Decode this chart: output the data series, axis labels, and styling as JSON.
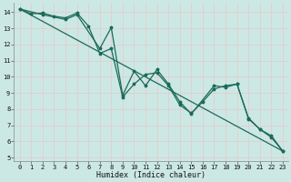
{
  "xlabel": "Humidex (Indice chaleur)",
  "bg_color": "#cce8e4",
  "grid_color_major": "#e8c8c8",
  "grid_color_minor": "#dcdcdc",
  "line_color": "#1a6b5a",
  "xlim": [
    -0.5,
    23.5
  ],
  "ylim": [
    4.8,
    14.6
  ],
  "yticks": [
    5,
    6,
    7,
    8,
    9,
    10,
    11,
    12,
    13,
    14
  ],
  "xticks": [
    0,
    1,
    2,
    3,
    4,
    5,
    6,
    7,
    8,
    9,
    10,
    11,
    12,
    13,
    14,
    15,
    16,
    17,
    18,
    19,
    20,
    21,
    22,
    23
  ],
  "line1_x": [
    0,
    1,
    2,
    3,
    4,
    5,
    6,
    7,
    8,
    9,
    10,
    11,
    12,
    13,
    14,
    15,
    16,
    17,
    18,
    19,
    20,
    21,
    22,
    23
  ],
  "line1_y": [
    14.2,
    13.9,
    13.95,
    13.75,
    13.65,
    13.95,
    13.15,
    11.45,
    11.75,
    8.75,
    9.55,
    10.15,
    10.25,
    9.45,
    8.25,
    7.75,
    8.45,
    9.25,
    9.45,
    9.55,
    7.45,
    6.75,
    6.25,
    5.4
  ],
  "line2_x": [
    0,
    2,
    4,
    5,
    7,
    8,
    9,
    10,
    11,
    12,
    13,
    14,
    15,
    17,
    18,
    19,
    20,
    21,
    22,
    23
  ],
  "line2_y": [
    14.2,
    13.85,
    13.55,
    13.85,
    11.75,
    13.05,
    8.85,
    10.35,
    9.45,
    10.45,
    9.55,
    8.45,
    7.7,
    9.45,
    9.35,
    9.55,
    7.4,
    6.75,
    6.35,
    5.4
  ],
  "line3_x": [
    0,
    23
  ],
  "line3_y": [
    14.2,
    5.4
  ]
}
